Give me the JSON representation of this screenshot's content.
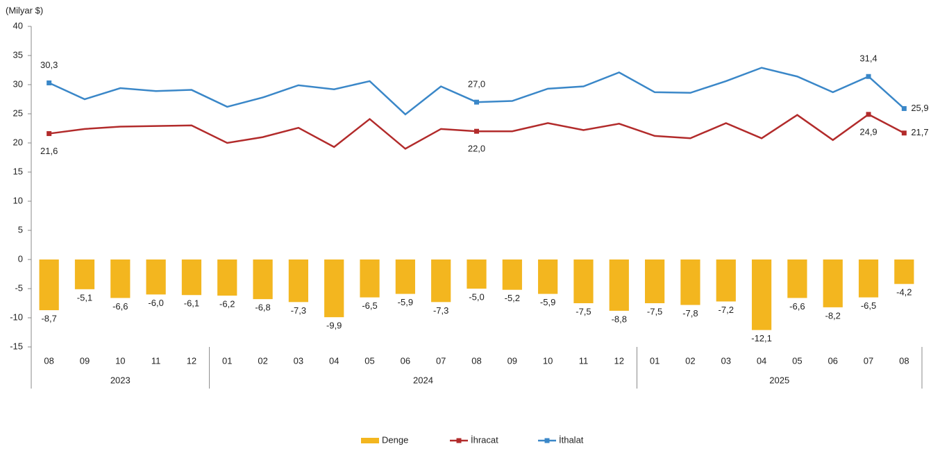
{
  "chart_data": {
    "type": "bar",
    "y_label": "(Milyar $)",
    "categories": [
      "08",
      "09",
      "10",
      "11",
      "12",
      "01",
      "02",
      "03",
      "04",
      "05",
      "06",
      "07",
      "08",
      "09",
      "10",
      "11",
      "12",
      "01",
      "02",
      "03",
      "04",
      "05",
      "06",
      "07",
      "08"
    ],
    "groups": [
      {
        "label": "2023",
        "count": 5
      },
      {
        "label": "2024",
        "count": 12
      },
      {
        "label": "2025",
        "count": 8
      }
    ],
    "ylim": [
      -15,
      40
    ],
    "yticks": [
      -15,
      -10,
      -5,
      0,
      5,
      10,
      15,
      20,
      25,
      30,
      35,
      40
    ],
    "series": [
      {
        "name": "Denge",
        "type": "bar",
        "color": "#f3b61f",
        "values": [
          -8.7,
          -5.1,
          -6.6,
          -6.0,
          -6.1,
          -6.2,
          -6.8,
          -7.3,
          -9.9,
          -6.5,
          -5.9,
          -7.3,
          -5.0,
          -5.2,
          -5.9,
          -7.5,
          -8.8,
          -7.5,
          -7.8,
          -7.2,
          -12.1,
          -6.6,
          -8.2,
          -6.5,
          -4.2
        ],
        "value_labels": [
          "-8,7",
          "-5,1",
          "-6,6",
          "-6,0",
          "-6,1",
          "-6,2",
          "-6,8",
          "-7,3",
          "-9,9",
          "-6,5",
          "-5,9",
          "-7,3",
          "-5,0",
          "-5,2",
          "-5,9",
          "-7,5",
          "-8,8",
          "-7,5",
          "-7,8",
          "-7,2",
          "-12,1",
          "-6,6",
          "-8,2",
          "-6,5",
          "-4,2"
        ]
      },
      {
        "name": "İhracat",
        "type": "line",
        "color": "#b22b2b",
        "values": [
          21.6,
          22.4,
          22.8,
          22.9,
          23.0,
          20.0,
          21.0,
          22.6,
          19.3,
          24.1,
          19.0,
          22.4,
          22.0,
          22.0,
          23.4,
          22.2,
          23.3,
          21.2,
          20.8,
          23.4,
          20.8,
          24.8,
          20.5,
          24.9,
          21.7
        ],
        "value_labels": [
          "21,6",
          null,
          null,
          null,
          null,
          null,
          null,
          null,
          null,
          null,
          null,
          null,
          "22,0",
          null,
          null,
          null,
          null,
          null,
          null,
          null,
          null,
          null,
          null,
          "24,9",
          "21,7"
        ]
      },
      {
        "name": "İthalat",
        "type": "line",
        "color": "#3a87c8",
        "values": [
          30.3,
          27.5,
          29.4,
          28.9,
          29.1,
          26.2,
          27.8,
          29.9,
          29.2,
          30.6,
          24.9,
          29.7,
          27.0,
          27.2,
          29.3,
          29.7,
          32.1,
          28.7,
          28.6,
          30.6,
          32.9,
          31.4,
          28.7,
          31.4,
          25.9
        ],
        "value_labels": [
          "30,3",
          null,
          null,
          null,
          null,
          null,
          null,
          null,
          null,
          null,
          null,
          null,
          "27,0",
          null,
          null,
          null,
          null,
          null,
          null,
          null,
          null,
          null,
          null,
          "31,4",
          "25,9"
        ]
      }
    ]
  }
}
